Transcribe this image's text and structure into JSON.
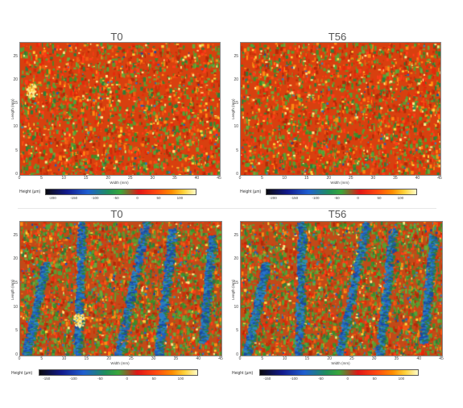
{
  "panels": [
    {
      "title": "T0",
      "xlabel": "Width (mm)",
      "ylabel": "Length (mm)",
      "y_ticks": [
        "0",
        "5",
        "10",
        "15",
        "20",
        "25"
      ],
      "x_ticks": [
        "0",
        "5",
        "10",
        "15",
        "20",
        "25",
        "30",
        "35",
        "40",
        "45"
      ],
      "colorbar_label": "Height (µm)",
      "colorbar_ticks": [
        "-200",
        "-150",
        "-100",
        "-50",
        "0",
        "50",
        "100"
      ],
      "pattern": "warm",
      "blob": 1
    },
    {
      "title": "T56",
      "xlabel": "Width (mm)",
      "ylabel": "Length (mm)",
      "y_ticks": [
        "0",
        "5",
        "10",
        "15",
        "20",
        "25"
      ],
      "x_ticks": [
        "0",
        "5",
        "10",
        "15",
        "20",
        "25",
        "30",
        "35",
        "40",
        "45"
      ],
      "colorbar_label": "Height (µm)",
      "colorbar_ticks": [
        "-200",
        "-150",
        "-100",
        "-50",
        "0",
        "50",
        "100"
      ],
      "pattern": "warm",
      "blob": 0
    },
    {
      "title": "T0",
      "xlabel": "Width (mm)",
      "ylabel": "Length (mm)",
      "y_ticks": [
        "0",
        "5",
        "10",
        "15",
        "20",
        "25"
      ],
      "x_ticks": [
        "0",
        "5",
        "10",
        "15",
        "20",
        "25",
        "30",
        "35",
        "40",
        "45"
      ],
      "colorbar_label": "Height (µm)",
      "colorbar_ticks": [
        "-150",
        "-100",
        "-50",
        "0",
        "50",
        "100"
      ],
      "pattern": "streaks",
      "blob": 1
    },
    {
      "title": "T56",
      "xlabel": "Width (mm)",
      "ylabel": "Length (mm)",
      "y_ticks": [
        "0",
        "5",
        "10",
        "15",
        "20",
        "25"
      ],
      "x_ticks": [
        "0",
        "5",
        "10",
        "15",
        "20",
        "25",
        "30",
        "35",
        "40",
        "45"
      ],
      "colorbar_label": "Height (µm)",
      "colorbar_ticks": [
        "-150",
        "-100",
        "-50",
        "0",
        "50",
        "100"
      ],
      "pattern": "streaks",
      "blob": 0
    }
  ]
}
